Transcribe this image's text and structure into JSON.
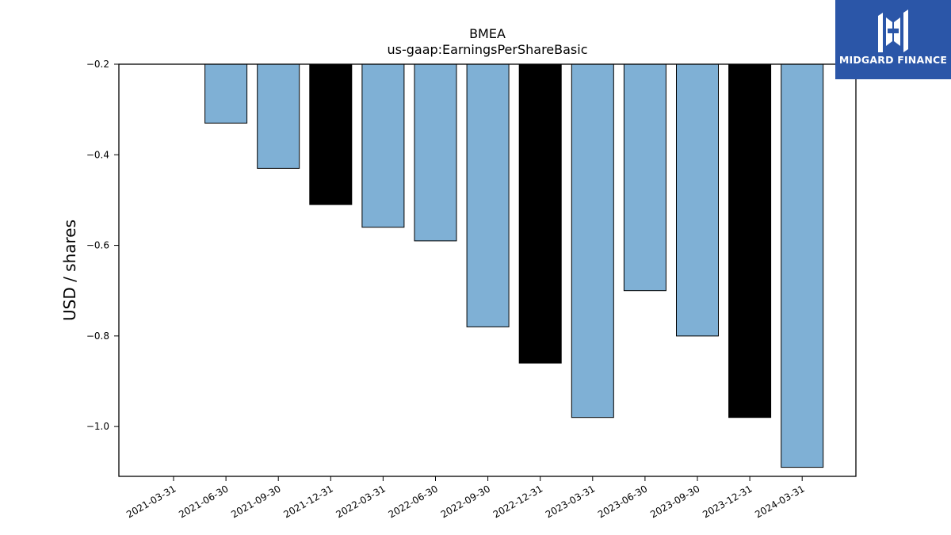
{
  "chart_data": {
    "type": "bar",
    "title": "BMEA",
    "subtitle": "us-gaap:EarningsPerShareBasic",
    "xlabel": "",
    "ylabel": "USD / shares",
    "categories": [
      "2021-03-31",
      "2021-06-30",
      "2021-09-30",
      "2021-12-31",
      "2022-03-31",
      "2022-06-30",
      "2022-09-30",
      "2022-12-31",
      "2023-03-31",
      "2023-06-30",
      "2023-09-30",
      "2023-12-31",
      "2024-03-31"
    ],
    "values": [
      null,
      -0.33,
      -0.43,
      -0.51,
      -0.56,
      -0.59,
      -0.78,
      -0.86,
      -0.98,
      -0.7,
      -0.8,
      -0.98,
      -1.09
    ],
    "bar_colors": [
      "#7fb0d5",
      "#7fb0d5",
      "#7fb0d5",
      "#000000",
      "#7fb0d5",
      "#7fb0d5",
      "#7fb0d5",
      "#000000",
      "#7fb0d5",
      "#7fb0d5",
      "#7fb0d5",
      "#000000",
      "#7fb0d5"
    ],
    "yticks": [
      -0.2,
      -0.4,
      -0.6,
      -0.8,
      -1.0
    ],
    "ytick_labels": [
      "−0.2",
      "−0.4",
      "−0.6",
      "−0.8",
      "−1.0"
    ],
    "ylim": [
      -1.11,
      -0.2
    ],
    "grid": false,
    "legend": "none"
  },
  "logo": {
    "text": "MIDGARD FINANCE",
    "icon": "midgard-finance-logo-icon",
    "background": "#2b56a8"
  }
}
